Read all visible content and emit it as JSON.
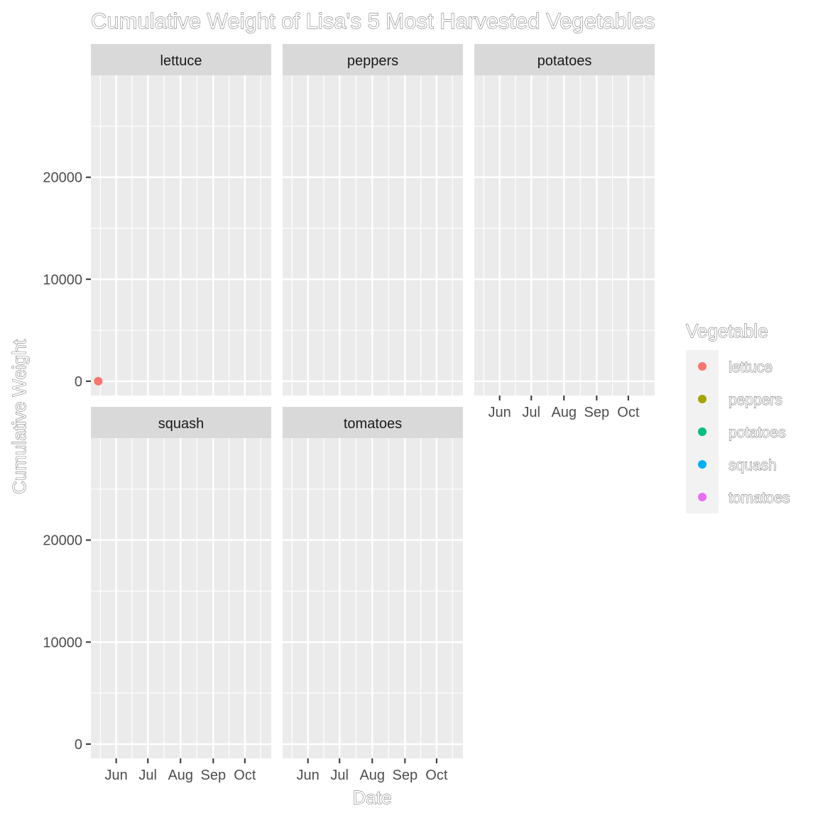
{
  "chart_data": {
    "type": "scatter",
    "title": "Cumulative Weight of Lisa's 5 Most Harvested Vegetables",
    "xlabel": "Date",
    "ylabel": "Cumulative Weight",
    "facets": [
      "lettuce",
      "peppers",
      "potatoes",
      "squash",
      "tomatoes"
    ],
    "x_ticks": [
      "Jun",
      "Jul",
      "Aug",
      "Sep",
      "Oct"
    ],
    "x_tick_dates": [
      "2020-06-01",
      "2020-07-01",
      "2020-08-01",
      "2020-09-01",
      "2020-10-01"
    ],
    "xlim": [
      "2020-05-08",
      "2020-10-26"
    ],
    "y_ticks": [
      0,
      10000,
      20000
    ],
    "ylim": [
      -1400,
      30000
    ],
    "grid": true,
    "legend": {
      "title": "Vegetable",
      "position": "right",
      "entries": [
        {
          "label": "lettuce",
          "color": "#F8766D"
        },
        {
          "label": "peppers",
          "color": "#A3A500"
        },
        {
          "label": "potatoes",
          "color": "#00BF7D"
        },
        {
          "label": "squash",
          "color": "#00B0F6"
        },
        {
          "label": "tomatoes",
          "color": "#E76BF3"
        }
      ]
    },
    "series": [
      {
        "name": "lettuce",
        "points": [
          {
            "x": "2020-05-15",
            "y": 0
          }
        ]
      },
      {
        "name": "peppers",
        "points": []
      },
      {
        "name": "potatoes",
        "points": []
      },
      {
        "name": "squash",
        "points": []
      },
      {
        "name": "tomatoes",
        "points": []
      }
    ]
  },
  "colors": {
    "panel_background": "#ebebeb",
    "strip_background": "#d9d9d9",
    "grid": "#ffffff"
  }
}
